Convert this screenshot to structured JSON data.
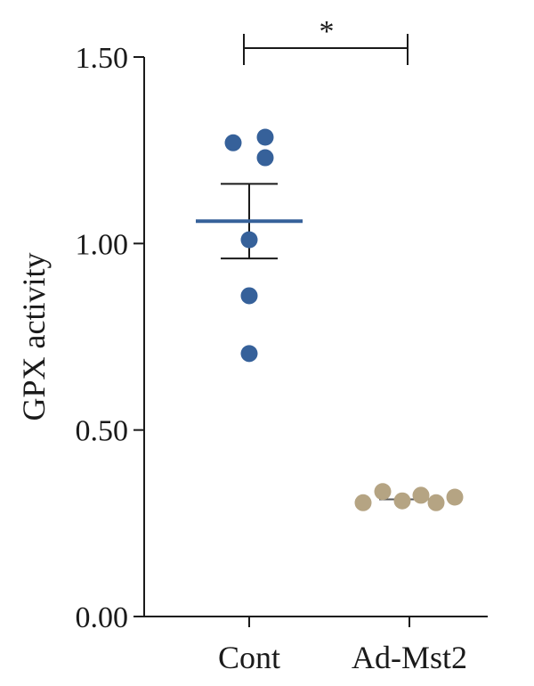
{
  "chart_data": {
    "type": "scatter",
    "title": "",
    "xlabel": "",
    "ylabel": "GPX activity",
    "ylim": [
      0,
      1.5
    ],
    "yticks": [
      "0.00",
      "0.50",
      "1.00",
      "1.50"
    ],
    "categories": [
      "Cont",
      "Ad-Mst2"
    ],
    "grid": false,
    "series": [
      {
        "category": "Cont",
        "color": "#36619a",
        "points": [
          1.27,
          1.285,
          1.23,
          1.01,
          0.86,
          0.705
        ],
        "mean": 1.06,
        "sem": 0.1
      },
      {
        "category": "Ad-Mst2",
        "color": "#b5a483",
        "points": [
          0.305,
          0.335,
          0.31,
          0.325,
          0.305,
          0.32
        ],
        "mean": 0.314,
        "sem": 0.006
      }
    ],
    "significance": {
      "between": [
        "Cont",
        "Ad-Mst2"
      ],
      "label": "*"
    }
  }
}
